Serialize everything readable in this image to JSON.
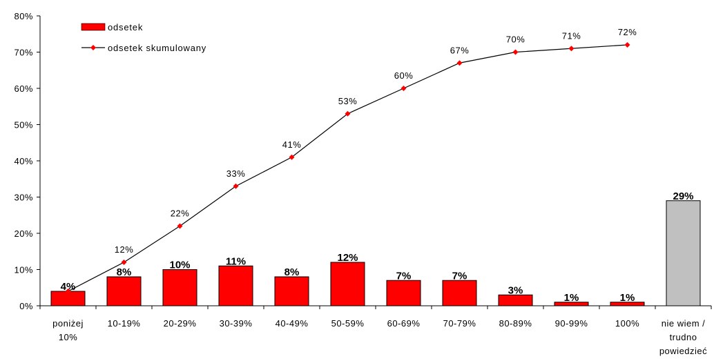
{
  "chart_data": {
    "type": "bar",
    "categories": [
      [
        "poniżej",
        "10%"
      ],
      [
        "10-19%"
      ],
      [
        "20-29%"
      ],
      [
        "30-39%"
      ],
      [
        "40-49%"
      ],
      [
        "50-59%"
      ],
      [
        "60-69%"
      ],
      [
        "70-79%"
      ],
      [
        "80-89%"
      ],
      [
        "90-99%"
      ],
      [
        "100%"
      ],
      [
        "nie wiem /",
        "trudno",
        "powiedzieć"
      ]
    ],
    "series": [
      {
        "name": "odsetek",
        "kind": "bar",
        "values": [
          4,
          8,
          10,
          11,
          8,
          12,
          7,
          7,
          3,
          1,
          1,
          29
        ],
        "labels": [
          "4%",
          "8%",
          "10%",
          "11%",
          "8%",
          "12%",
          "7%",
          "7%",
          "3%",
          "1%",
          "1%",
          "29%"
        ],
        "color": "#ff0000",
        "last_bar_color": "#c0c0c0"
      },
      {
        "name": "odsetek skumulowany",
        "kind": "line",
        "values": [
          4,
          12,
          22,
          33,
          41,
          53,
          60,
          67,
          70,
          71,
          72,
          null
        ],
        "labels": [
          "",
          "12%",
          "22%",
          "33%",
          "41%",
          "53%",
          "60%",
          "67%",
          "70%",
          "71%",
          "72%",
          ""
        ],
        "color": "#000000",
        "marker_color": "#ff0000"
      }
    ],
    "ylim": [
      0,
      80
    ],
    "yticks": [
      0,
      10,
      20,
      30,
      40,
      50,
      60,
      70,
      80
    ],
    "ytick_labels": [
      "0%",
      "10%",
      "20%",
      "30%",
      "40%",
      "50%",
      "60%",
      "70%",
      "80%"
    ],
    "grid": false,
    "legend": "top-left"
  }
}
